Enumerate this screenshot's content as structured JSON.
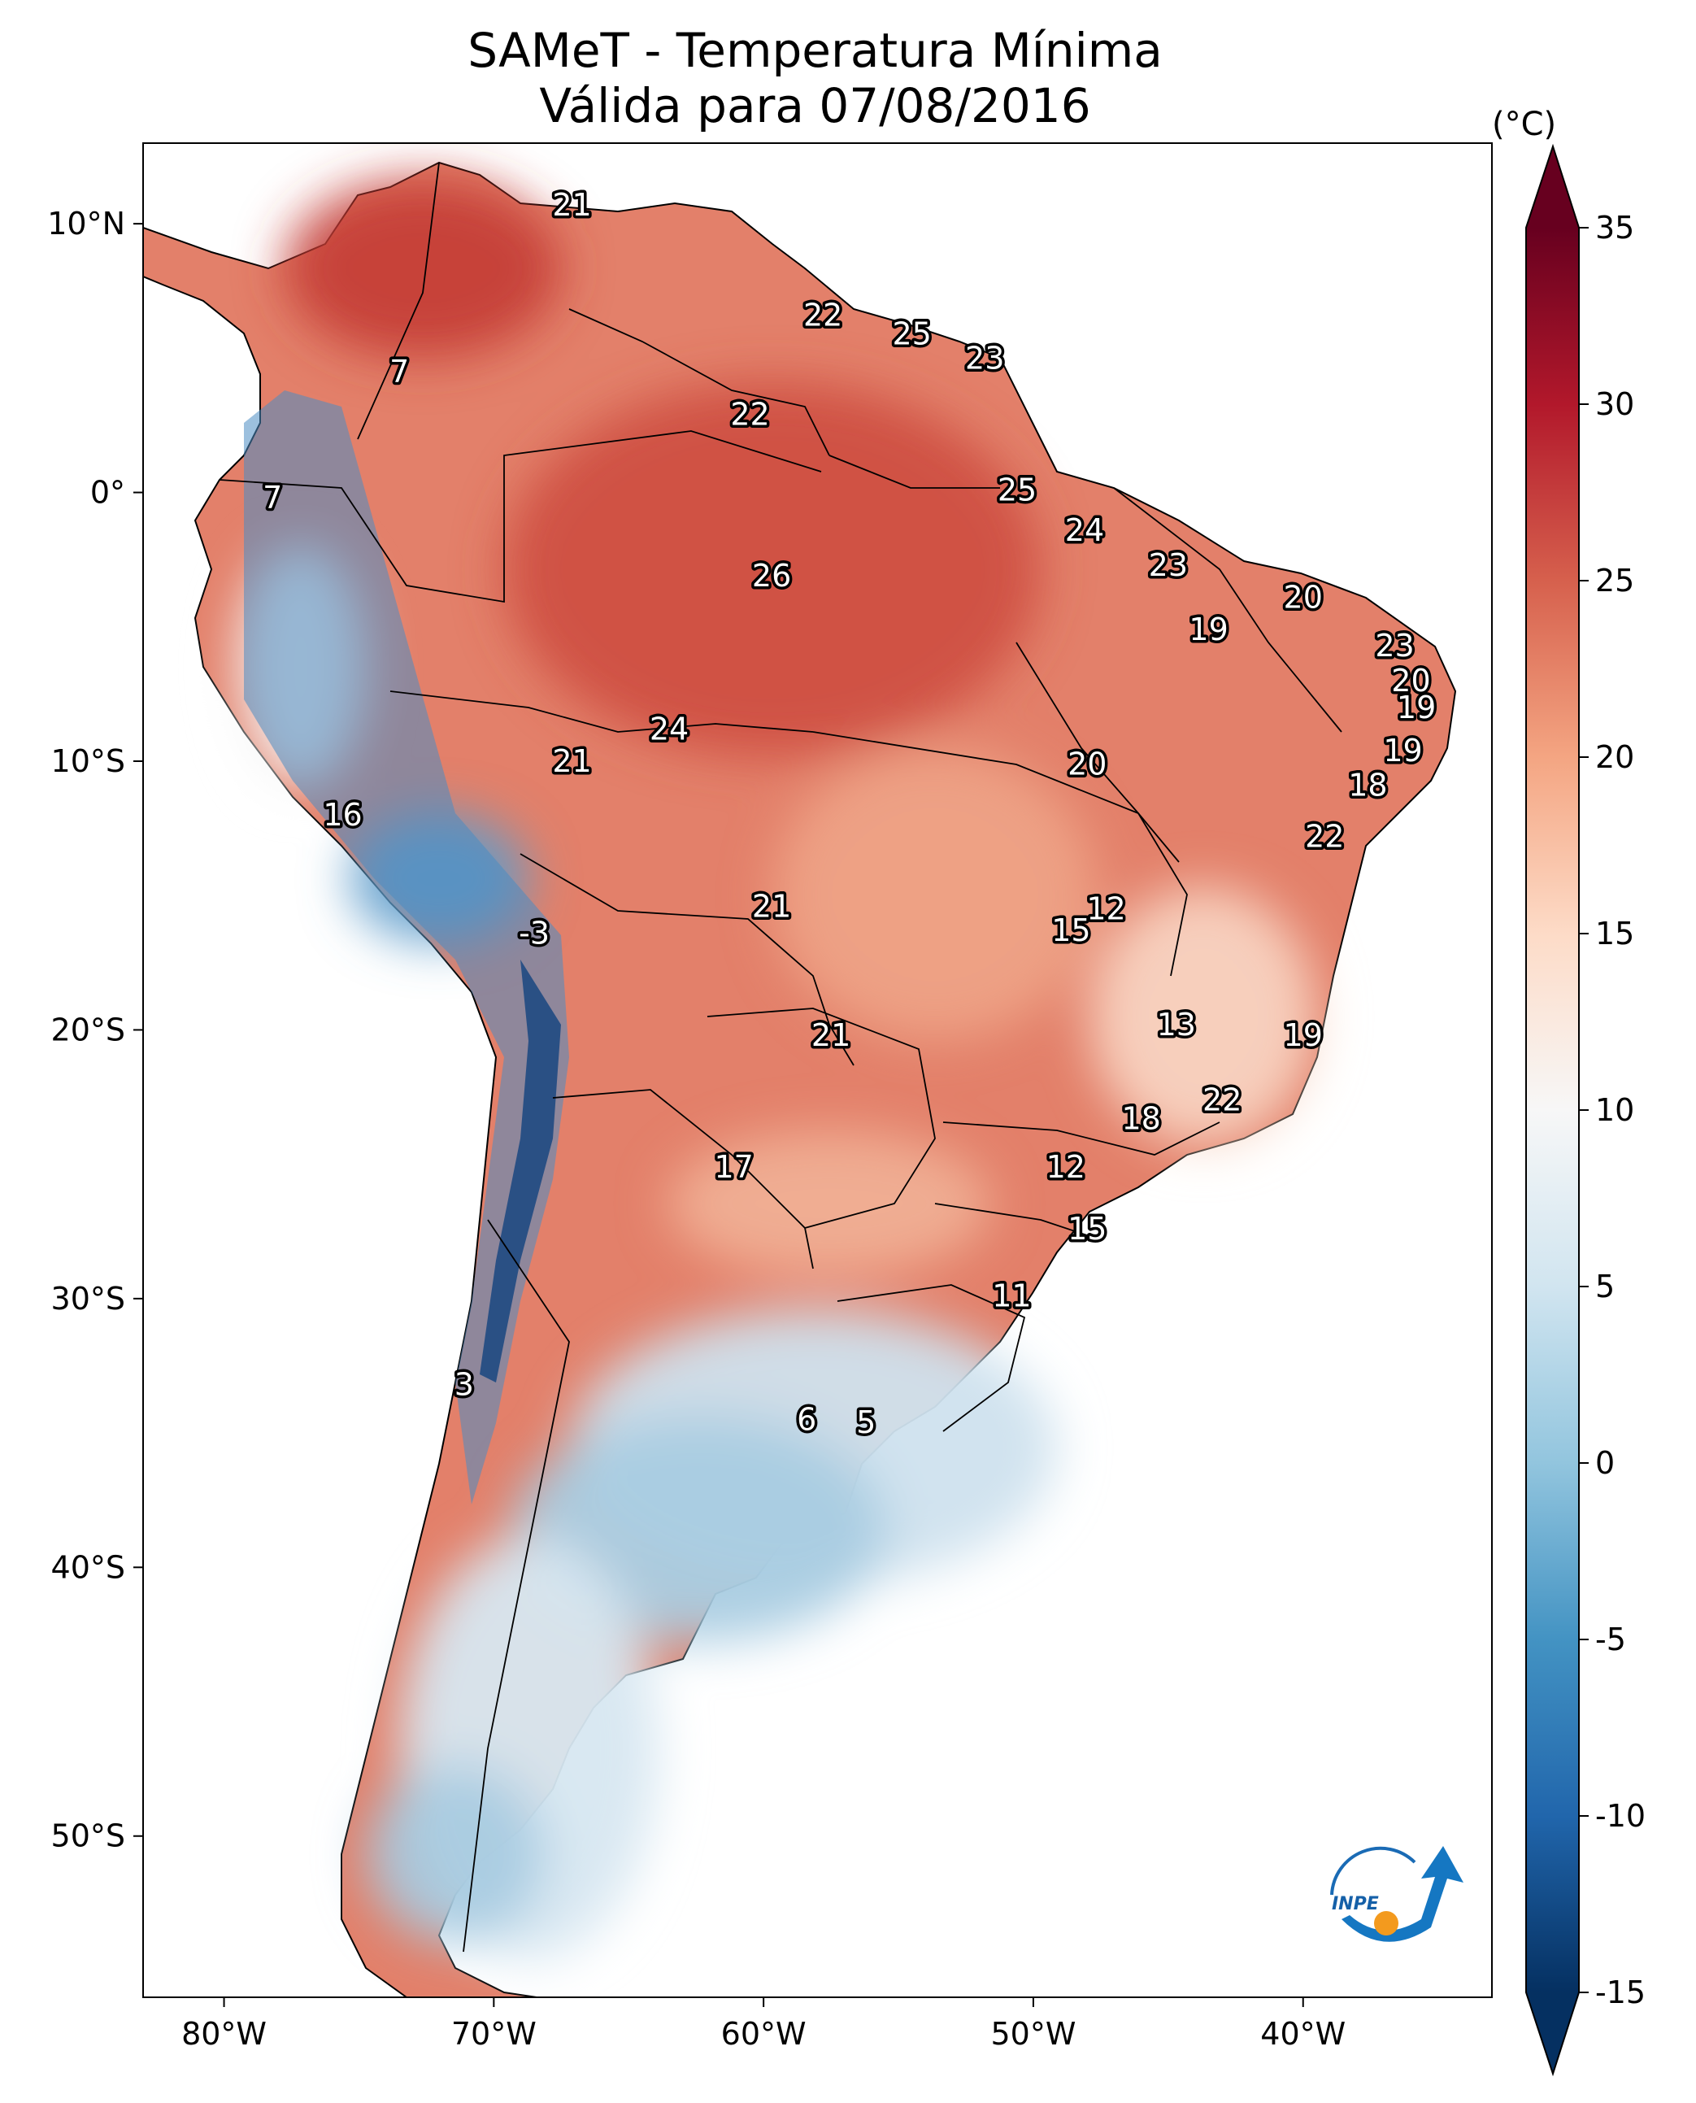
{
  "title": {
    "line1": "SAMeT - Temperatura Mínima",
    "line2": "Válida para 07/08/2016"
  },
  "axes": {
    "lon_ticks": [
      "80°W",
      "70°W",
      "60°W",
      "50°W",
      "40°W"
    ],
    "lat_ticks": [
      "10°N",
      "0°",
      "10°S",
      "20°S",
      "30°S",
      "40°S",
      "50°S"
    ]
  },
  "colorbar": {
    "unit": "(°C)",
    "ticks": [
      "35",
      "30",
      "25",
      "20",
      "15",
      "10",
      "5",
      "0",
      "-5",
      "-10",
      "-15"
    ],
    "colors": [
      "#67001f",
      "#b2182b",
      "#d6604d",
      "#f4a582",
      "#fddbc7",
      "#f7f7f7",
      "#d1e5f0",
      "#92c5de",
      "#4393c3",
      "#2166ac",
      "#053061"
    ]
  },
  "logo": {
    "text": "INPE"
  },
  "chart_data": {
    "type": "map",
    "lon_range": [
      -83,
      -33
    ],
    "lat_range": [
      -56,
      13
    ],
    "temperature_range": [
      -15,
      35
    ],
    "labels": [
      {
        "lon": -67.1,
        "lat": 10.7,
        "value": "21"
      },
      {
        "lon": -73.5,
        "lat": 4.5,
        "value": "7"
      },
      {
        "lon": -57.8,
        "lat": 6.6,
        "value": "22"
      },
      {
        "lon": -54.5,
        "lat": 5.9,
        "value": "25"
      },
      {
        "lon": -51.8,
        "lat": 5.0,
        "value": "23"
      },
      {
        "lon": -60.5,
        "lat": 2.9,
        "value": "22"
      },
      {
        "lon": -78.2,
        "lat": -0.2,
        "value": "7"
      },
      {
        "lon": -50.6,
        "lat": 0.1,
        "value": "25"
      },
      {
        "lon": -48.1,
        "lat": -1.4,
        "value": "24"
      },
      {
        "lon": -45.0,
        "lat": -2.7,
        "value": "23"
      },
      {
        "lon": -40.0,
        "lat": -3.9,
        "value": "20"
      },
      {
        "lon": -59.7,
        "lat": -3.1,
        "value": "26"
      },
      {
        "lon": -43.5,
        "lat": -5.1,
        "value": "19"
      },
      {
        "lon": -36.6,
        "lat": -5.7,
        "value": "23"
      },
      {
        "lon": -36.0,
        "lat": -7.0,
        "value": "20"
      },
      {
        "lon": -35.8,
        "lat": -8.0,
        "value": "19"
      },
      {
        "lon": -63.5,
        "lat": -8.8,
        "value": "24"
      },
      {
        "lon": -67.1,
        "lat": -10.0,
        "value": "21"
      },
      {
        "lon": -48.0,
        "lat": -10.1,
        "value": "20"
      },
      {
        "lon": -36.3,
        "lat": -9.6,
        "value": "19"
      },
      {
        "lon": -37.6,
        "lat": -10.9,
        "value": "18"
      },
      {
        "lon": -39.2,
        "lat": -12.8,
        "value": "22"
      },
      {
        "lon": -75.6,
        "lat": -12.0,
        "value": "16"
      },
      {
        "lon": -59.7,
        "lat": -15.4,
        "value": "21"
      },
      {
        "lon": -47.3,
        "lat": -15.5,
        "value": "12"
      },
      {
        "lon": -48.6,
        "lat": -16.3,
        "value": "15"
      },
      {
        "lon": -68.5,
        "lat": -16.4,
        "value": "-3"
      },
      {
        "lon": -44.7,
        "lat": -19.8,
        "value": "13"
      },
      {
        "lon": -40.0,
        "lat": -20.2,
        "value": "19"
      },
      {
        "lon": -57.5,
        "lat": -20.2,
        "value": "21"
      },
      {
        "lon": -43.0,
        "lat": -22.6,
        "value": "22"
      },
      {
        "lon": -46.0,
        "lat": -23.3,
        "value": "18"
      },
      {
        "lon": -61.1,
        "lat": -25.1,
        "value": "17"
      },
      {
        "lon": -48.8,
        "lat": -25.1,
        "value": "12"
      },
      {
        "lon": -48.0,
        "lat": -27.4,
        "value": "15"
      },
      {
        "lon": -50.8,
        "lat": -29.9,
        "value": "11"
      },
      {
        "lon": -71.1,
        "lat": -33.2,
        "value": "3"
      },
      {
        "lon": -58.4,
        "lat": -34.5,
        "value": "6"
      },
      {
        "lon": -56.2,
        "lat": -34.6,
        "value": "5"
      }
    ]
  }
}
